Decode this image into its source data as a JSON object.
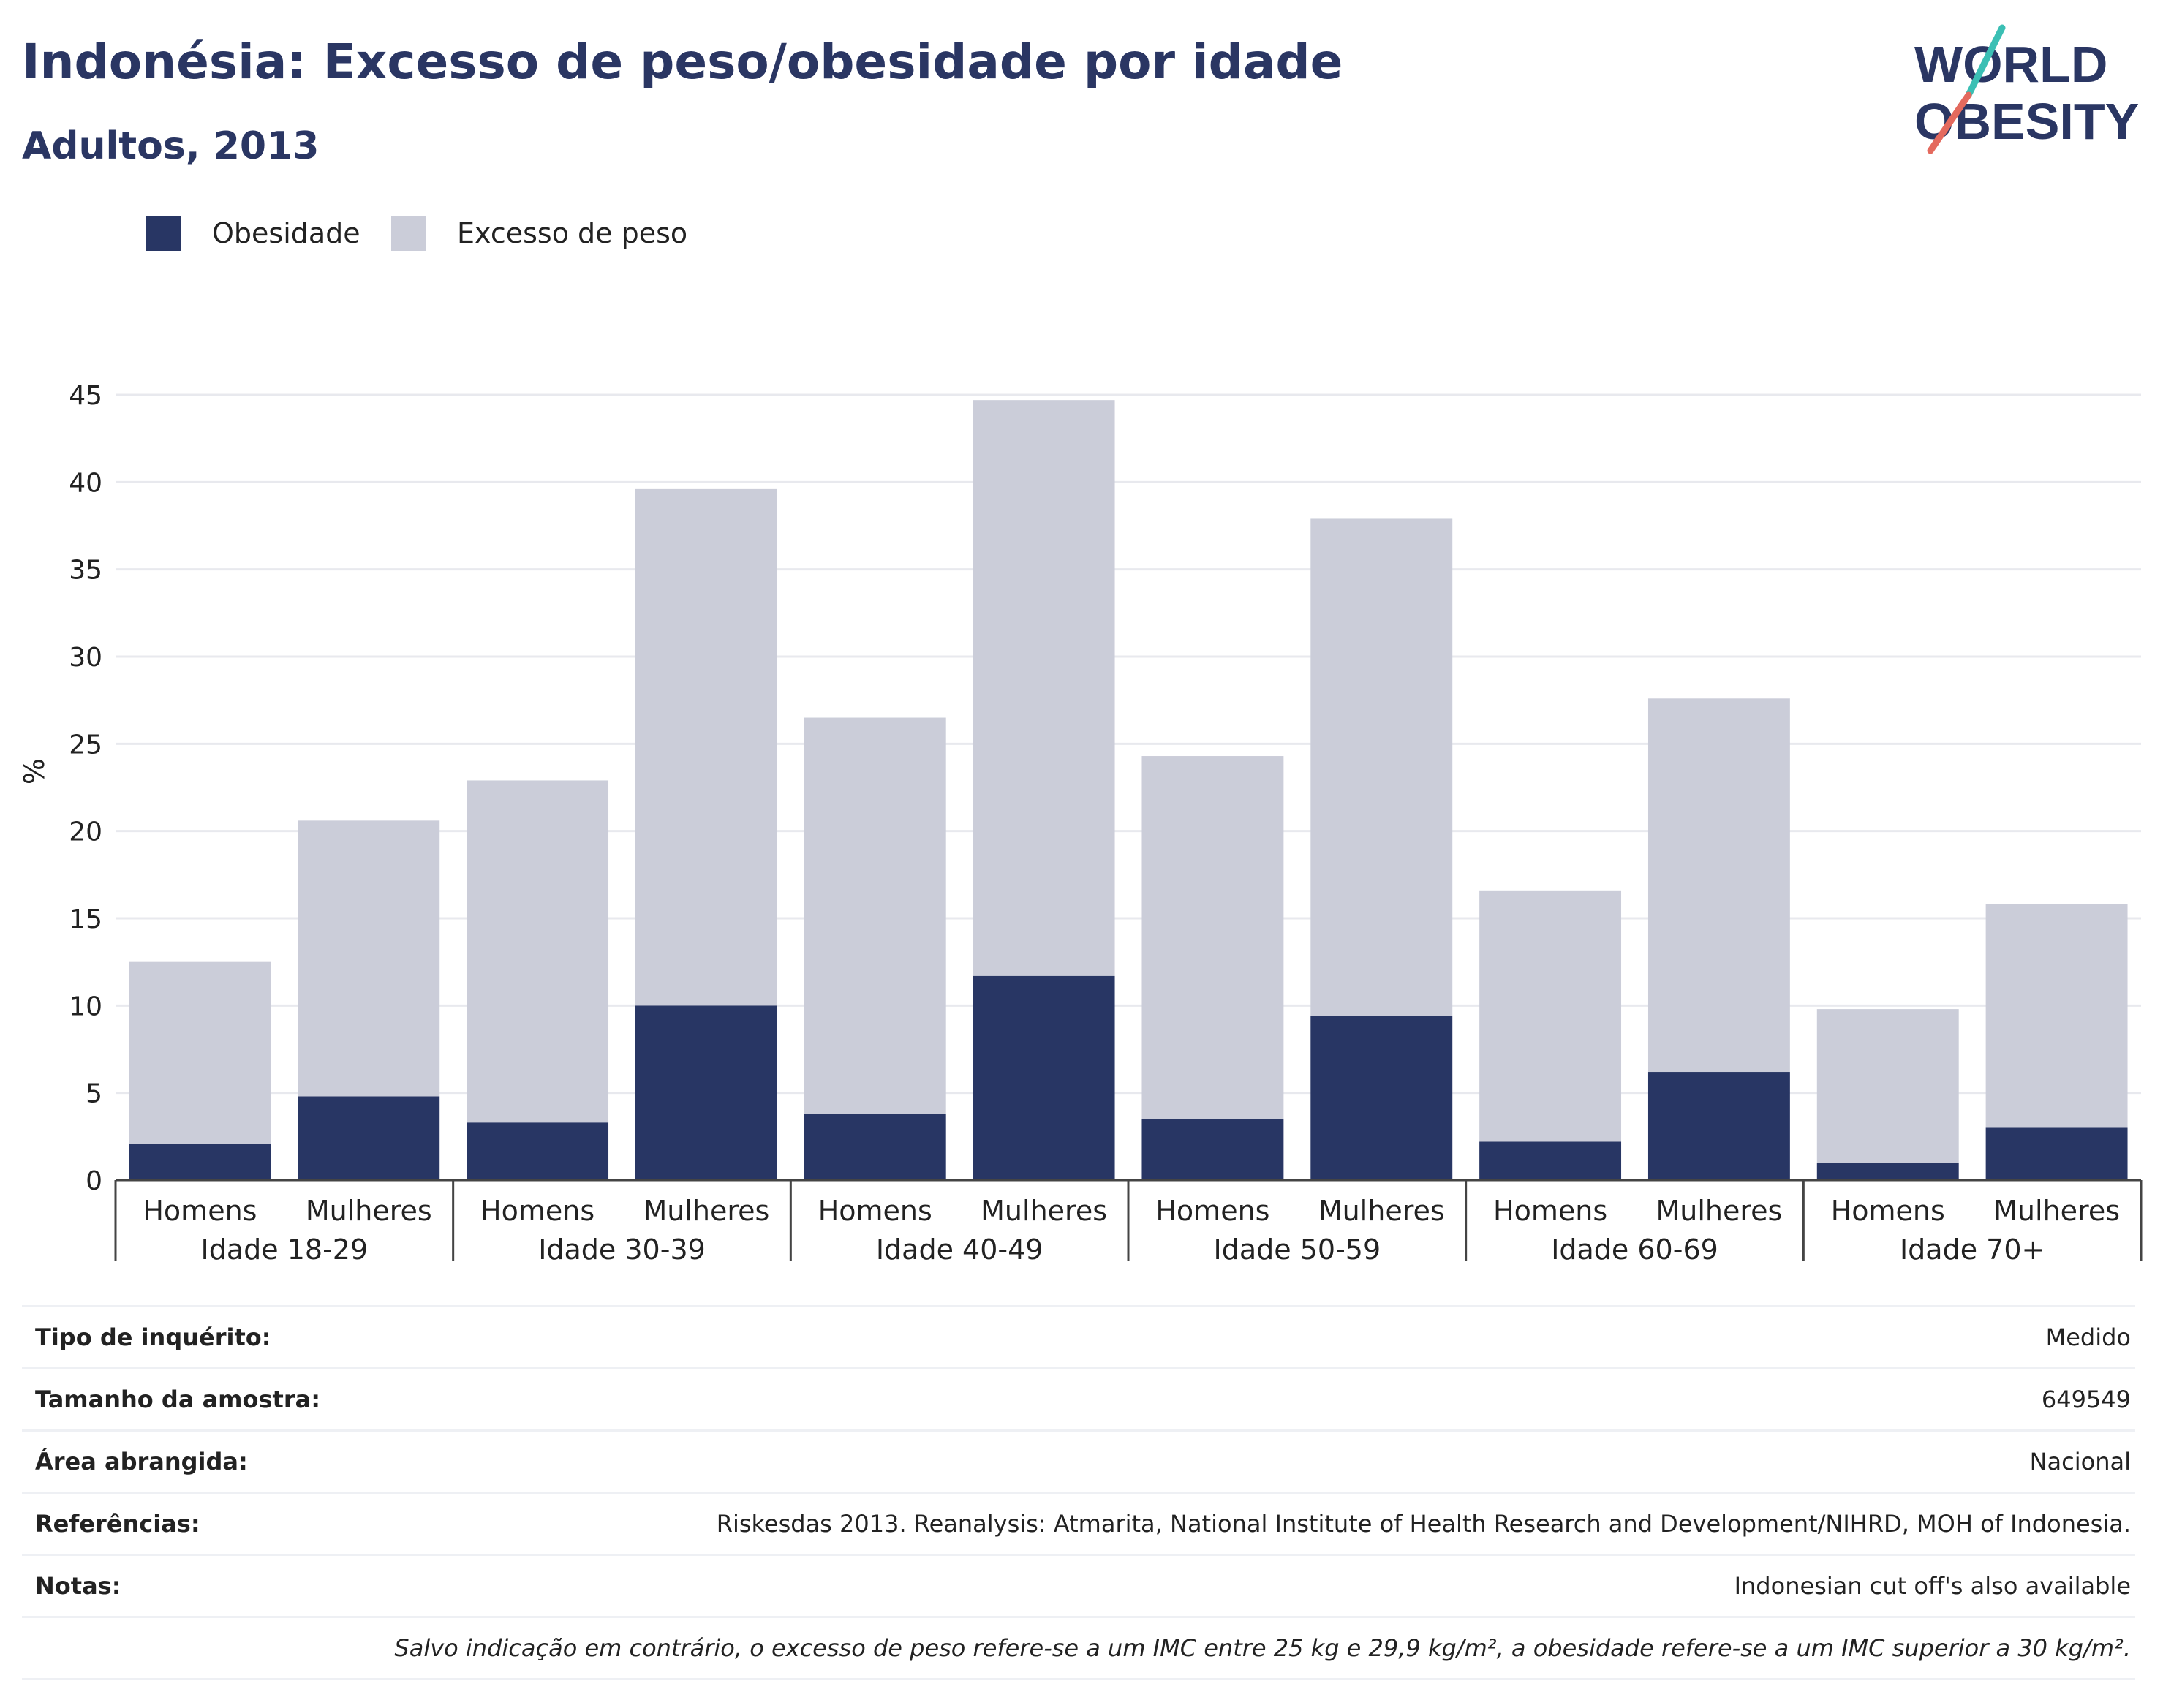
{
  "header": {
    "title": "Indonésia: Excesso de peso/obesidade por idade",
    "subtitle": "Adultos, 2013"
  },
  "logo": {
    "line1": "WORLD",
    "line2": "OBESITY",
    "accent_colors": [
      "#3bbfb4",
      "#e46a5e"
    ]
  },
  "colors": {
    "obesity": "#283664",
    "overweight": "#cbcdd9",
    "title": "#2a3663",
    "grid": "#e8e9ee"
  },
  "chart_data": {
    "type": "bar",
    "stacked": true,
    "ylabel": "%",
    "ylim": [
      0,
      45
    ],
    "yticks": [
      0,
      5,
      10,
      15,
      20,
      25,
      30,
      35,
      40,
      45
    ],
    "legend_position": "top-left",
    "legend": [
      "Obesidade",
      "Excesso de peso"
    ],
    "groups": [
      "Idade 18-29",
      "Idade 30-39",
      "Idade 40-49",
      "Idade 50-59",
      "Idade 60-69",
      "Idade 70+"
    ],
    "categories": [
      "Homens",
      "Mulheres"
    ],
    "series": [
      {
        "name": "Obesidade",
        "values": [
          [
            2.1,
            4.8
          ],
          [
            3.3,
            10.0
          ],
          [
            3.8,
            11.7
          ],
          [
            3.5,
            9.4
          ],
          [
            2.2,
            6.2
          ],
          [
            1.0,
            3.0
          ]
        ]
      },
      {
        "name": "Excesso de peso",
        "values": [
          [
            10.4,
            15.8
          ],
          [
            19.6,
            29.6
          ],
          [
            22.7,
            33.0
          ],
          [
            20.8,
            28.5
          ],
          [
            14.4,
            21.4
          ],
          [
            8.8,
            12.8
          ]
        ]
      }
    ]
  },
  "info": {
    "rows": [
      {
        "label": "Tipo de inquérito:",
        "value": "Medido"
      },
      {
        "label": "Tamanho da amostra:",
        "value": "649549"
      },
      {
        "label": "Área abrangida:",
        "value": "Nacional"
      },
      {
        "label": "Referências:",
        "value": "Riskesdas 2013. Reanalysis: Atmarita, National Institute of Health Research and Development/NIHRD, MOH of Indonesia."
      },
      {
        "label": "Notas:",
        "value": "Indonesian cut off's also available"
      }
    ],
    "footnote": "Salvo indicação em contrário, o excesso de peso refere-se a um IMC entre 25 kg e 29,9 kg/m², a obesidade refere-se a um IMC superior a 30 kg/m²."
  }
}
